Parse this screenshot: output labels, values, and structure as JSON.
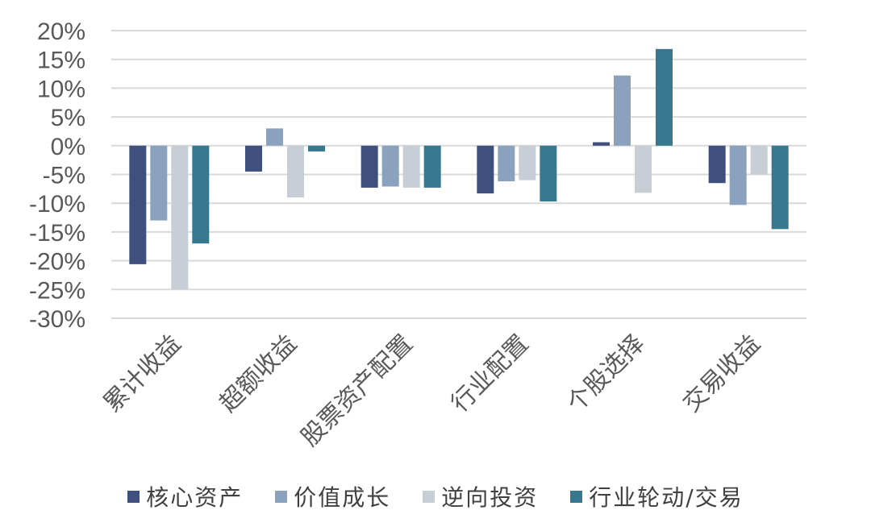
{
  "chart_data": {
    "type": "bar",
    "categories": [
      "累计收益",
      "超额收益",
      "股票资产配置",
      "行业配置",
      "个股选择",
      "交易收益"
    ],
    "series": [
      {
        "name": "核心资产",
        "color": "#3F4F7E",
        "values": [
          -20.6,
          -4.5,
          -7.3,
          -8.3,
          0.6,
          -6.5
        ]
      },
      {
        "name": "价值成长",
        "color": "#8AA2BD",
        "values": [
          -13.0,
          3.0,
          -7.1,
          -6.2,
          12.2,
          -10.3
        ]
      },
      {
        "name": "逆向投资",
        "color": "#C7CED5",
        "values": [
          -25.0,
          -9.0,
          -7.3,
          -6.0,
          -8.2,
          -5.0
        ]
      },
      {
        "name": "行业轮动/交易",
        "color": "#37788F",
        "values": [
          -17.0,
          -1.0,
          -7.3,
          -9.7,
          16.8,
          -14.5
        ]
      }
    ],
    "yticks": [
      "20%",
      "15%",
      "10%",
      "5%",
      "0%",
      "-5%",
      "-10%",
      "-15%",
      "-20%",
      "-25%",
      "-30%"
    ],
    "ylim": [
      -30,
      20
    ],
    "grid": true,
    "legend_position": "bottom"
  }
}
